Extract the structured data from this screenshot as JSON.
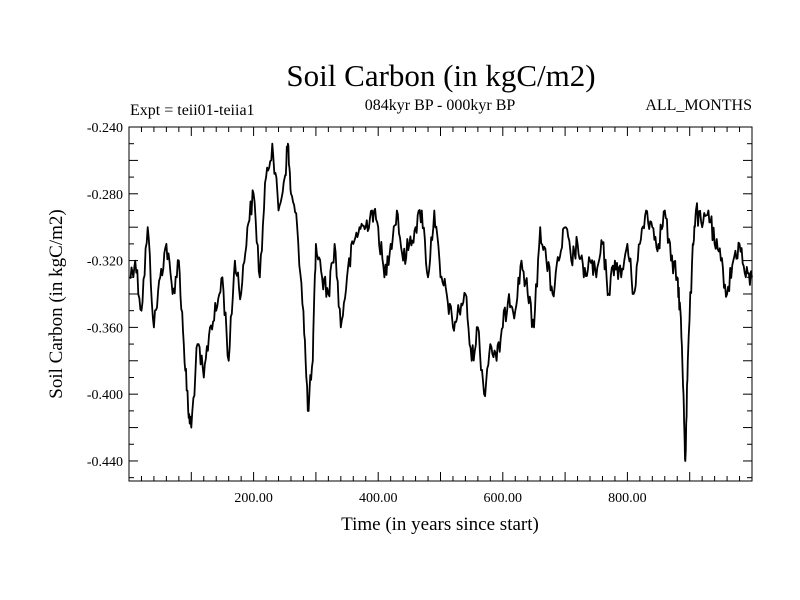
{
  "chart_data": {
    "type": "line",
    "title": "Soil Carbon (in kgC/m2)",
    "subtitle": "084kyr BP - 000kyr BP",
    "annotation_left": "Expt = teii01-teiia1",
    "annotation_right": "ALL_MONTHS",
    "xlabel": "Time (in years since start)",
    "ylabel": "Soil Carbon (in kgC/m2)",
    "xlim": [
      0,
      1000
    ],
    "ylim": [
      -0.452,
      -0.24
    ],
    "xticks": [
      200,
      400,
      600,
      800
    ],
    "xtick_labels": [
      "200.00",
      "400.00",
      "600.00",
      "800.00"
    ],
    "yticks": [
      -0.24,
      -0.28,
      -0.32,
      -0.36,
      -0.4,
      -0.44
    ],
    "ytick_labels": [
      "-0.240",
      "-0.280",
      "-0.320",
      "-0.360",
      "-0.400",
      "-0.440"
    ],
    "grid": false,
    "line_color": "#000000",
    "series": [
      {
        "x": [
          1,
          10,
          20,
          30,
          40,
          50,
          60,
          70,
          80,
          88,
          95,
          100,
          110,
          120,
          130,
          140,
          150,
          160,
          170,
          180,
          190,
          200,
          210,
          220,
          230,
          240,
          250,
          255,
          260,
          270,
          280,
          287,
          295,
          300,
          310,
          320,
          330,
          340,
          350,
          360,
          370,
          380,
          390,
          400,
          410,
          420,
          430,
          440,
          450,
          460,
          470,
          480,
          490,
          500,
          510,
          520,
          530,
          540,
          550,
          560,
          570,
          580,
          590,
          600,
          610,
          620,
          630,
          640,
          650,
          660,
          670,
          680,
          690,
          700,
          710,
          720,
          730,
          740,
          750,
          760,
          770,
          780,
          790,
          800,
          810,
          820,
          830,
          840,
          850,
          860,
          870,
          880,
          885,
          890,
          893,
          897,
          905,
          910,
          920,
          930,
          940,
          950,
          960,
          970,
          980,
          990,
          1000
        ],
        "y": [
          -0.33,
          -0.32,
          -0.35,
          -0.3,
          -0.36,
          -0.33,
          -0.31,
          -0.34,
          -0.32,
          -0.37,
          -0.41,
          -0.42,
          -0.37,
          -0.39,
          -0.36,
          -0.35,
          -0.33,
          -0.38,
          -0.32,
          -0.34,
          -0.3,
          -0.28,
          -0.33,
          -0.27,
          -0.25,
          -0.29,
          -0.27,
          -0.25,
          -0.28,
          -0.3,
          -0.35,
          -0.41,
          -0.38,
          -0.31,
          -0.33,
          -0.34,
          -0.31,
          -0.36,
          -0.33,
          -0.31,
          -0.3,
          -0.3,
          -0.29,
          -0.3,
          -0.33,
          -0.31,
          -0.29,
          -0.32,
          -0.31,
          -0.3,
          -0.29,
          -0.33,
          -0.29,
          -0.33,
          -0.34,
          -0.36,
          -0.35,
          -0.34,
          -0.38,
          -0.36,
          -0.4,
          -0.37,
          -0.38,
          -0.36,
          -0.34,
          -0.35,
          -0.32,
          -0.34,
          -0.36,
          -0.3,
          -0.32,
          -0.34,
          -0.32,
          -0.3,
          -0.32,
          -0.31,
          -0.33,
          -0.32,
          -0.33,
          -0.31,
          -0.34,
          -0.32,
          -0.33,
          -0.31,
          -0.34,
          -0.31,
          -0.29,
          -0.3,
          -0.31,
          -0.29,
          -0.32,
          -0.33,
          -0.35,
          -0.4,
          -0.44,
          -0.38,
          -0.31,
          -0.29,
          -0.3,
          -0.29,
          -0.31,
          -0.32,
          -0.34,
          -0.32,
          -0.31,
          -0.33,
          -0.33
        ]
      }
    ]
  }
}
